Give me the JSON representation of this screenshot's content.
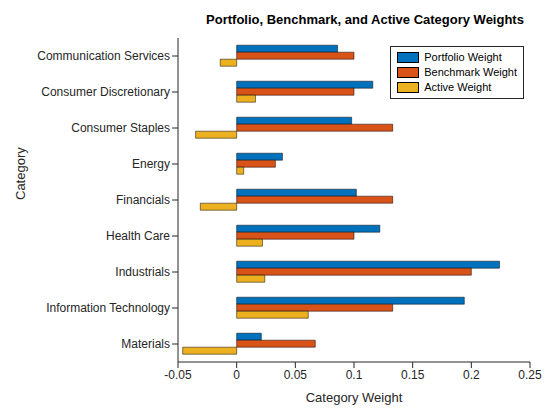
{
  "chart_data": {
    "type": "bar",
    "orientation": "horizontal",
    "title": "Portfolio, Benchmark, and Active Category Weights",
    "x_label": "Category Weight",
    "y_label": "Category",
    "categories": [
      "Communication Services",
      "Consumer Discretionary",
      "Consumer Staples",
      "Energy",
      "Financials",
      "Health Care",
      "Industrials",
      "Information Technology",
      "Materials"
    ],
    "series": [
      {
        "name": "Portfolio Weight",
        "color": "#0072BD",
        "values": [
          0.086,
          0.116,
          0.098,
          0.039,
          0.102,
          0.122,
          0.224,
          0.194,
          0.021
        ]
      },
      {
        "name": "Benchmark Weight",
        "color": "#D95319",
        "values": [
          0.1,
          0.1,
          0.133,
          0.033,
          0.133,
          0.1,
          0.2,
          0.133,
          0.067
        ]
      },
      {
        "name": "Active Weight",
        "color": "#EDB120",
        "values": [
          -0.014,
          0.016,
          -0.035,
          0.006,
          -0.031,
          0.022,
          0.024,
          0.061,
          -0.046
        ]
      }
    ],
    "xlim": [
      -0.05,
      0.25
    ],
    "xticks": [
      -0.05,
      0,
      0.05,
      0.1,
      0.15,
      0.2,
      0.25
    ],
    "grid": false,
    "legend": "northeast"
  }
}
